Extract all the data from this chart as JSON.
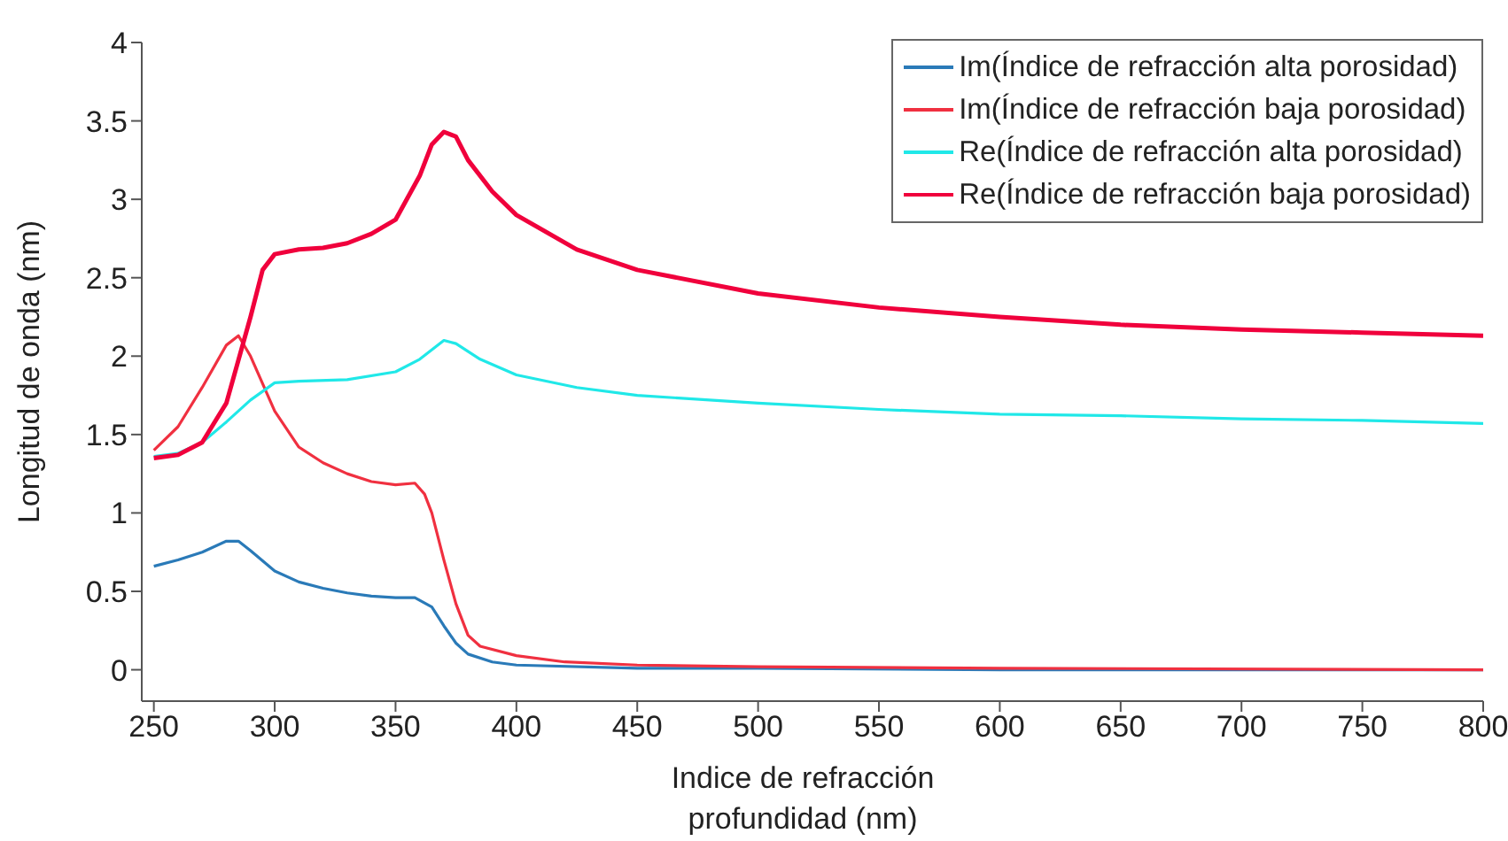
{
  "chart_data": {
    "type": "line",
    "xlabel": "Indice de refracción profundidad (nm)",
    "ylabel": "Longitud de onda (nm)",
    "xlim": [
      245,
      800
    ],
    "xticks": [
      250,
      300,
      350,
      400,
      450,
      500,
      550,
      600,
      650,
      700,
      750,
      800
    ],
    "ylim": [
      -0.2,
      4
    ],
    "yticks": [
      0,
      0.5,
      1,
      1.5,
      2,
      2.5,
      3,
      3.5,
      4
    ],
    "legend": "top right",
    "grid": false,
    "marker": "none",
    "line_style": "solid",
    "series": [
      {
        "name": "Im(Índice de refracción alta porosidad)",
        "color": "#2a7ab8",
        "x": [
          250,
          260,
          270,
          280,
          285,
          290,
          300,
          310,
          320,
          330,
          340,
          350,
          358,
          365,
          370,
          375,
          380,
          390,
          400,
          450,
          500,
          600,
          800
        ],
        "values": [
          0.66,
          0.7,
          0.75,
          0.82,
          0.82,
          0.76,
          0.63,
          0.56,
          0.52,
          0.49,
          0.47,
          0.46,
          0.46,
          0.4,
          0.28,
          0.17,
          0.1,
          0.05,
          0.03,
          0.01,
          0.01,
          0,
          0
        ]
      },
      {
        "name": "Im(Índice de refracción baja porosidad)",
        "color": "#f03040",
        "x": [
          250,
          260,
          270,
          280,
          285,
          290,
          300,
          310,
          320,
          330,
          340,
          350,
          358,
          362,
          365,
          370,
          375,
          380,
          385,
          400,
          420,
          450,
          500,
          600,
          800
        ],
        "values": [
          1.4,
          1.55,
          1.8,
          2.07,
          2.13,
          2.0,
          1.65,
          1.42,
          1.32,
          1.25,
          1.2,
          1.18,
          1.19,
          1.12,
          1.0,
          0.7,
          0.42,
          0.22,
          0.15,
          0.09,
          0.05,
          0.03,
          0.02,
          0.01,
          0
        ]
      },
      {
        "name": "Re(Índice de refracción alta porosidad)",
        "color": "#20e8e8",
        "x": [
          250,
          260,
          270,
          280,
          290,
          300,
          310,
          330,
          350,
          360,
          370,
          375,
          385,
          400,
          425,
          450,
          500,
          550,
          600,
          650,
          700,
          750,
          800
        ],
        "values": [
          1.36,
          1.38,
          1.45,
          1.58,
          1.72,
          1.83,
          1.84,
          1.85,
          1.9,
          1.98,
          2.1,
          2.08,
          1.98,
          1.88,
          1.8,
          1.75,
          1.7,
          1.66,
          1.63,
          1.62,
          1.6,
          1.59,
          1.57
        ]
      },
      {
        "name": "Re(Índice de refracción baja porosidad)",
        "color": "#f0003c",
        "x": [
          250,
          260,
          270,
          280,
          290,
          295,
          300,
          310,
          320,
          330,
          340,
          350,
          360,
          365,
          370,
          375,
          380,
          390,
          400,
          425,
          450,
          500,
          550,
          600,
          650,
          700,
          750,
          800
        ],
        "values": [
          1.35,
          1.37,
          1.45,
          1.7,
          2.25,
          2.55,
          2.65,
          2.68,
          2.69,
          2.72,
          2.78,
          2.87,
          3.15,
          3.35,
          3.43,
          3.4,
          3.25,
          3.05,
          2.9,
          2.68,
          2.55,
          2.4,
          2.31,
          2.25,
          2.2,
          2.17,
          2.15,
          2.13
        ]
      }
    ]
  }
}
